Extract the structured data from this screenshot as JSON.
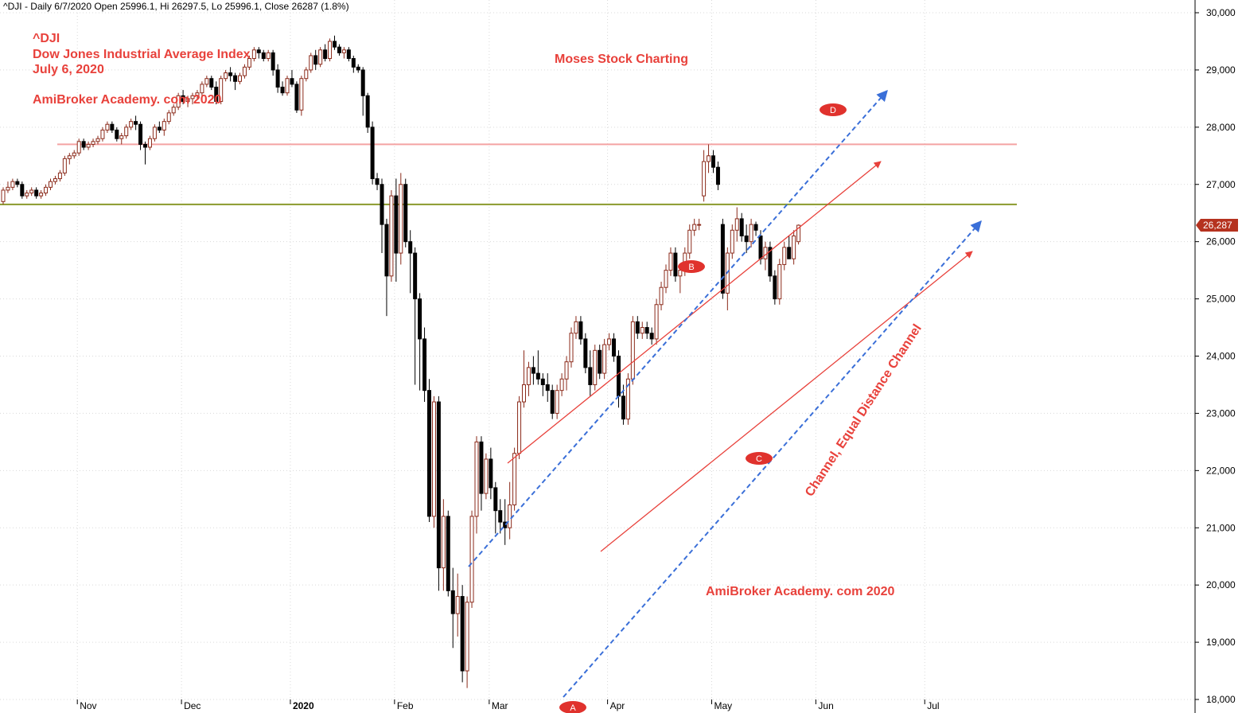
{
  "header": {
    "text": "^DJI - Daily 6/7/2020 Open 25996.1, Hi 26297.5, Lo 25996.1, Close 26287 (1.8%)"
  },
  "annotations": {
    "ticker": "^DJI",
    "name": "Dow Jones Industrial Average Index",
    "date": "July 6, 2020",
    "site_top": "AmiBroker Academy. com  2020",
    "brand": "Moses Stock Charting",
    "site_bottom": "AmiBroker Academy. com  2020",
    "channel": "Channel, Equal Distance Channel"
  },
  "points": {
    "a": "A",
    "b": "B",
    "c": "C",
    "d": "D"
  },
  "last_price": {
    "label": "26,287",
    "value": 26287
  },
  "colors": {
    "up_body": "#ffffff",
    "candle_outline": "#8b2a1a",
    "down_body": "#000000",
    "resistance": "#f4a3a3",
    "support": "#8a9a2b",
    "channel_red": "#e8413b",
    "channel_blue": "#3a6fd8",
    "point_marker": "#e0322d",
    "price_tag": "#b5321f",
    "grid": "#d9d9d9"
  },
  "chart_data": {
    "type": "candlestick",
    "ylim": [
      18000,
      30000
    ],
    "y_ticks": [
      "30,000",
      "29,000",
      "28,000",
      "27,000",
      "26,000",
      "25,000",
      "24,000",
      "23,000",
      "22,000",
      "21,000",
      "20,000",
      "19,000",
      "18,000"
    ],
    "x_ticks": [
      "Nov",
      "Dec",
      "2020",
      "Feb",
      "Mar",
      "Apr",
      "May",
      "Jun",
      "Jul"
    ],
    "horizontal_levels": [
      27700,
      26650
    ],
    "ohlc": [
      [
        26700,
        26950,
        26650,
        26900
      ],
      [
        26900,
        27050,
        26850,
        26950
      ],
      [
        26950,
        27100,
        26900,
        27050
      ],
      [
        27050,
        27100,
        26950,
        27000
      ],
      [
        27000,
        27050,
        26750,
        26800
      ],
      [
        26800,
        26900,
        26750,
        26850
      ],
      [
        26850,
        26950,
        26800,
        26900
      ],
      [
        26900,
        26950,
        26750,
        26800
      ],
      [
        26800,
        26900,
        26750,
        26850
      ],
      [
        26850,
        27000,
        26800,
        26950
      ],
      [
        26950,
        27100,
        26900,
        27050
      ],
      [
        27050,
        27150,
        27000,
        27100
      ],
      [
        27100,
        27250,
        27050,
        27200
      ],
      [
        27200,
        27500,
        27150,
        27450
      ],
      [
        27450,
        27550,
        27350,
        27500
      ],
      [
        27500,
        27600,
        27450,
        27550
      ],
      [
        27550,
        27800,
        27500,
        27750
      ],
      [
        27750,
        27800,
        27600,
        27650
      ],
      [
        27650,
        27750,
        27600,
        27700
      ],
      [
        27700,
        27800,
        27650,
        27750
      ],
      [
        27750,
        27850,
        27700,
        27800
      ],
      [
        27800,
        28000,
        27750,
        27950
      ],
      [
        27950,
        28100,
        27900,
        28050
      ],
      [
        28050,
        28100,
        27900,
        27950
      ],
      [
        27950,
        28000,
        27750,
        27800
      ],
      [
        27800,
        27900,
        27700,
        27850
      ],
      [
        27850,
        28050,
        27800,
        28000
      ],
      [
        28000,
        28150,
        27950,
        28100
      ],
      [
        28100,
        28200,
        27950,
        28050
      ],
      [
        28050,
        28100,
        27600,
        27700
      ],
      [
        27700,
        27750,
        27350,
        27650
      ],
      [
        27650,
        27850,
        27600,
        27800
      ],
      [
        27800,
        28050,
        27750,
        28000
      ],
      [
        28000,
        28100,
        27900,
        27950
      ],
      [
        27950,
        28150,
        27850,
        28100
      ],
      [
        28100,
        28300,
        28050,
        28250
      ],
      [
        28250,
        28400,
        28200,
        28350
      ],
      [
        28350,
        28600,
        28300,
        28550
      ],
      [
        28550,
        28650,
        28400,
        28450
      ],
      [
        28450,
        28550,
        28350,
        28500
      ],
      [
        28500,
        28600,
        28400,
        28550
      ],
      [
        28550,
        28650,
        28500,
        28600
      ],
      [
        28600,
        28800,
        28550,
        28750
      ],
      [
        28750,
        28900,
        28700,
        28850
      ],
      [
        28850,
        28900,
        28650,
        28700
      ],
      [
        28700,
        28800,
        28400,
        28450
      ],
      [
        28450,
        28900,
        28400,
        28850
      ],
      [
        28850,
        29000,
        28800,
        28950
      ],
      [
        28950,
        29050,
        28800,
        28900
      ],
      [
        28900,
        28950,
        28650,
        28800
      ],
      [
        28800,
        28950,
        28750,
        28900
      ],
      [
        28900,
        29100,
        28850,
        29050
      ],
      [
        29050,
        29250,
        29000,
        29200
      ],
      [
        29200,
        29400,
        29150,
        29350
      ],
      [
        29350,
        29400,
        29200,
        29300
      ],
      [
        29300,
        29350,
        29150,
        29200
      ],
      [
        29200,
        29350,
        29150,
        29300
      ],
      [
        29300,
        29350,
        28900,
        29000
      ],
      [
        29000,
        29100,
        28600,
        28700
      ],
      [
        28700,
        28800,
        28550,
        28600
      ],
      [
        28600,
        28900,
        28550,
        28850
      ],
      [
        28850,
        29000,
        28700,
        28750
      ],
      [
        28750,
        28800,
        28250,
        28300
      ],
      [
        28300,
        28900,
        28200,
        28850
      ],
      [
        28850,
        29050,
        28800,
        29000
      ],
      [
        29000,
        29300,
        28950,
        29250
      ],
      [
        29250,
        29350,
        29000,
        29100
      ],
      [
        29100,
        29400,
        29050,
        29350
      ],
      [
        29350,
        29450,
        29150,
        29200
      ],
      [
        29200,
        29550,
        29150,
        29500
      ],
      [
        29500,
        29600,
        29350,
        29400
      ],
      [
        29400,
        29450,
        29250,
        29300
      ],
      [
        29300,
        29400,
        29200,
        29350
      ],
      [
        29350,
        29400,
        29150,
        29200
      ],
      [
        29200,
        29250,
        28950,
        29050
      ],
      [
        29050,
        29100,
        28950,
        29000
      ],
      [
        29000,
        29050,
        28200,
        28550
      ],
      [
        28550,
        28600,
        27900,
        28000
      ],
      [
        28000,
        28100,
        27000,
        27100
      ],
      [
        27100,
        27200,
        26900,
        27000
      ],
      [
        27000,
        27100,
        25800,
        26300
      ],
      [
        26300,
        26400,
        24700,
        25400
      ],
      [
        25400,
        26900,
        25300,
        26800
      ],
      [
        26800,
        27100,
        25300,
        25800
      ],
      [
        25800,
        27200,
        25600,
        27000
      ],
      [
        27000,
        27100,
        25900,
        26000
      ],
      [
        26000,
        26200,
        25100,
        25800
      ],
      [
        25800,
        25900,
        23500,
        25000
      ],
      [
        25000,
        25100,
        23400,
        24300
      ],
      [
        24300,
        24500,
        23200,
        23400
      ],
      [
        23400,
        23600,
        21100,
        21200
      ],
      [
        21200,
        23300,
        21000,
        23200
      ],
      [
        23200,
        23300,
        19900,
        20300
      ],
      [
        20300,
        21500,
        19900,
        21200
      ],
      [
        21200,
        21300,
        19800,
        19900
      ],
      [
        19900,
        20300,
        18900,
        19500
      ],
      [
        19500,
        20200,
        19100,
        19800
      ],
      [
        19800,
        20000,
        18300,
        18500
      ],
      [
        18500,
        19800,
        18200,
        19700
      ],
      [
        19700,
        21300,
        19600,
        21200
      ],
      [
        21200,
        22600,
        20900,
        22500
      ],
      [
        22500,
        22600,
        21300,
        21600
      ],
      [
        21600,
        22300,
        21500,
        22200
      ],
      [
        22200,
        22400,
        21500,
        21700
      ],
      [
        21700,
        21800,
        20900,
        21300
      ],
      [
        21300,
        21500,
        20900,
        21100
      ],
      [
        21100,
        21500,
        20700,
        21000
      ],
      [
        21000,
        21800,
        20800,
        21400
      ],
      [
        21400,
        22400,
        21300,
        22300
      ],
      [
        22300,
        23300,
        22200,
        23200
      ],
      [
        23200,
        24100,
        23100,
        23500
      ],
      [
        23500,
        23900,
        23300,
        23800
      ],
      [
        23800,
        24000,
        23500,
        23700
      ],
      [
        23700,
        24100,
        23500,
        23600
      ],
      [
        23600,
        23700,
        23300,
        23500
      ],
      [
        23500,
        23700,
        23200,
        23400
      ],
      [
        23400,
        23500,
        22900,
        23000
      ],
      [
        23000,
        23500,
        22900,
        23400
      ],
      [
        23400,
        23700,
        23300,
        23600
      ],
      [
        23600,
        24000,
        23400,
        23900
      ],
      [
        23900,
        24500,
        23800,
        24400
      ],
      [
        24400,
        24700,
        24300,
        24600
      ],
      [
        24600,
        24700,
        24200,
        24300
      ],
      [
        24300,
        24400,
        23700,
        23800
      ],
      [
        23800,
        24100,
        23300,
        23500
      ],
      [
        23500,
        24200,
        23400,
        24100
      ],
      [
        24100,
        24200,
        23600,
        23700
      ],
      [
        23700,
        24300,
        23600,
        24200
      ],
      [
        24200,
        24400,
        24100,
        24300
      ],
      [
        24300,
        24400,
        23900,
        24000
      ],
      [
        24000,
        24100,
        23100,
        23300
      ],
      [
        23300,
        23500,
        22800,
        22900
      ],
      [
        22900,
        23700,
        22800,
        23600
      ],
      [
        23600,
        24700,
        23500,
        24600
      ],
      [
        24600,
        24700,
        24300,
        24400
      ],
      [
        24400,
        24600,
        24300,
        24500
      ],
      [
        24500,
        24600,
        24300,
        24400
      ],
      [
        24400,
        24500,
        24200,
        24300
      ],
      [
        24300,
        25000,
        24200,
        24900
      ],
      [
        24900,
        25300,
        24800,
        25200
      ],
      [
        25200,
        25600,
        25100,
        25500
      ],
      [
        25500,
        25900,
        25400,
        25800
      ],
      [
        25800,
        25900,
        25300,
        25400
      ],
      [
        25400,
        25600,
        25100,
        25500
      ],
      [
        25500,
        25900,
        25400,
        25800
      ],
      [
        25800,
        26300,
        25700,
        26200
      ],
      [
        26200,
        26400,
        26100,
        26300
      ],
      [
        26300,
        26400,
        26200,
        26300
      ],
      [
        26800,
        27600,
        26700,
        27400
      ],
      [
        27400,
        27700,
        27200,
        27500
      ],
      [
        27500,
        27600,
        27200,
        27300
      ],
      [
        27300,
        27400,
        26900,
        27000
      ],
      [
        26300,
        26400,
        25000,
        25100
      ],
      [
        25100,
        25900,
        24800,
        25800
      ],
      [
        25800,
        26300,
        25700,
        26200
      ],
      [
        26200,
        26600,
        26000,
        26400
      ],
      [
        26400,
        26500,
        26000,
        26100
      ],
      [
        26100,
        26300,
        25800,
        26000
      ],
      [
        26000,
        26400,
        25900,
        26300
      ],
      [
        26300,
        26350,
        26100,
        26200
      ],
      [
        26100,
        26200,
        25600,
        25700
      ],
      [
        25700,
        26000,
        25500,
        25900
      ],
      [
        25900,
        26000,
        25300,
        25400
      ],
      [
        25400,
        25500,
        24900,
        25000
      ],
      [
        25000,
        25700,
        24900,
        25600
      ],
      [
        25600,
        26000,
        25500,
        25900
      ],
      [
        25900,
        26100,
        25800,
        25700
      ],
      [
        25700,
        26200,
        25600,
        26100
      ],
      [
        26000,
        26300,
        25950,
        26287
      ]
    ]
  }
}
